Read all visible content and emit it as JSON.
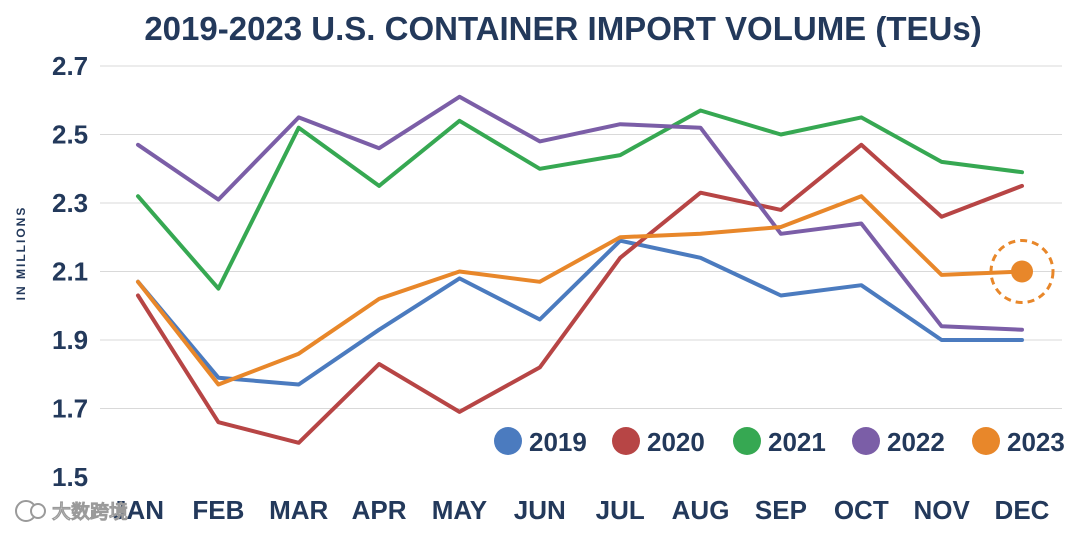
{
  "chart_data": {
    "type": "line",
    "title": "2019-2023 U.S. CONTAINER IMPORT VOLUME (TEUs)",
    "ylabel": "IN MILLIONS",
    "xlabel": "",
    "ylim": [
      1.5,
      2.7
    ],
    "yticks": [
      "2.7",
      "2.5",
      "2.3",
      "2.1",
      "1.9",
      "1.7",
      "1.5"
    ],
    "categories": [
      "JAN",
      "FEB",
      "MAR",
      "APR",
      "MAY",
      "JUN",
      "JUL",
      "AUG",
      "SEP",
      "OCT",
      "NOV",
      "DEC"
    ],
    "grid": true,
    "legend_position": "bottom-right",
    "series": [
      {
        "name": "2019",
        "color": "#4b7bbf",
        "values": [
          2.07,
          1.79,
          1.77,
          1.93,
          2.08,
          1.96,
          2.19,
          2.14,
          2.03,
          2.06,
          1.9,
          1.9
        ]
      },
      {
        "name": "2020",
        "color": "#b74545",
        "values": [
          2.03,
          1.66,
          1.6,
          1.83,
          1.69,
          1.82,
          2.14,
          2.33,
          2.28,
          2.47,
          2.26,
          2.35
        ]
      },
      {
        "name": "2021",
        "color": "#36a852",
        "values": [
          2.32,
          2.05,
          2.52,
          2.35,
          2.54,
          2.4,
          2.44,
          2.57,
          2.5,
          2.55,
          2.42,
          2.39
        ]
      },
      {
        "name": "2022",
        "color": "#7b5ea7",
        "values": [
          2.47,
          2.31,
          2.55,
          2.46,
          2.61,
          2.48,
          2.53,
          2.52,
          2.21,
          2.24,
          1.94,
          1.93
        ]
      },
      {
        "name": "2023",
        "color": "#e8872a",
        "values": [
          2.07,
          1.77,
          1.86,
          2.02,
          2.1,
          2.07,
          2.2,
          2.21,
          2.23,
          2.32,
          2.09,
          2.1
        ]
      }
    ],
    "highlight": {
      "series": "2023",
      "category": "DEC"
    }
  },
  "watermark": {
    "text": "大数跨境"
  }
}
